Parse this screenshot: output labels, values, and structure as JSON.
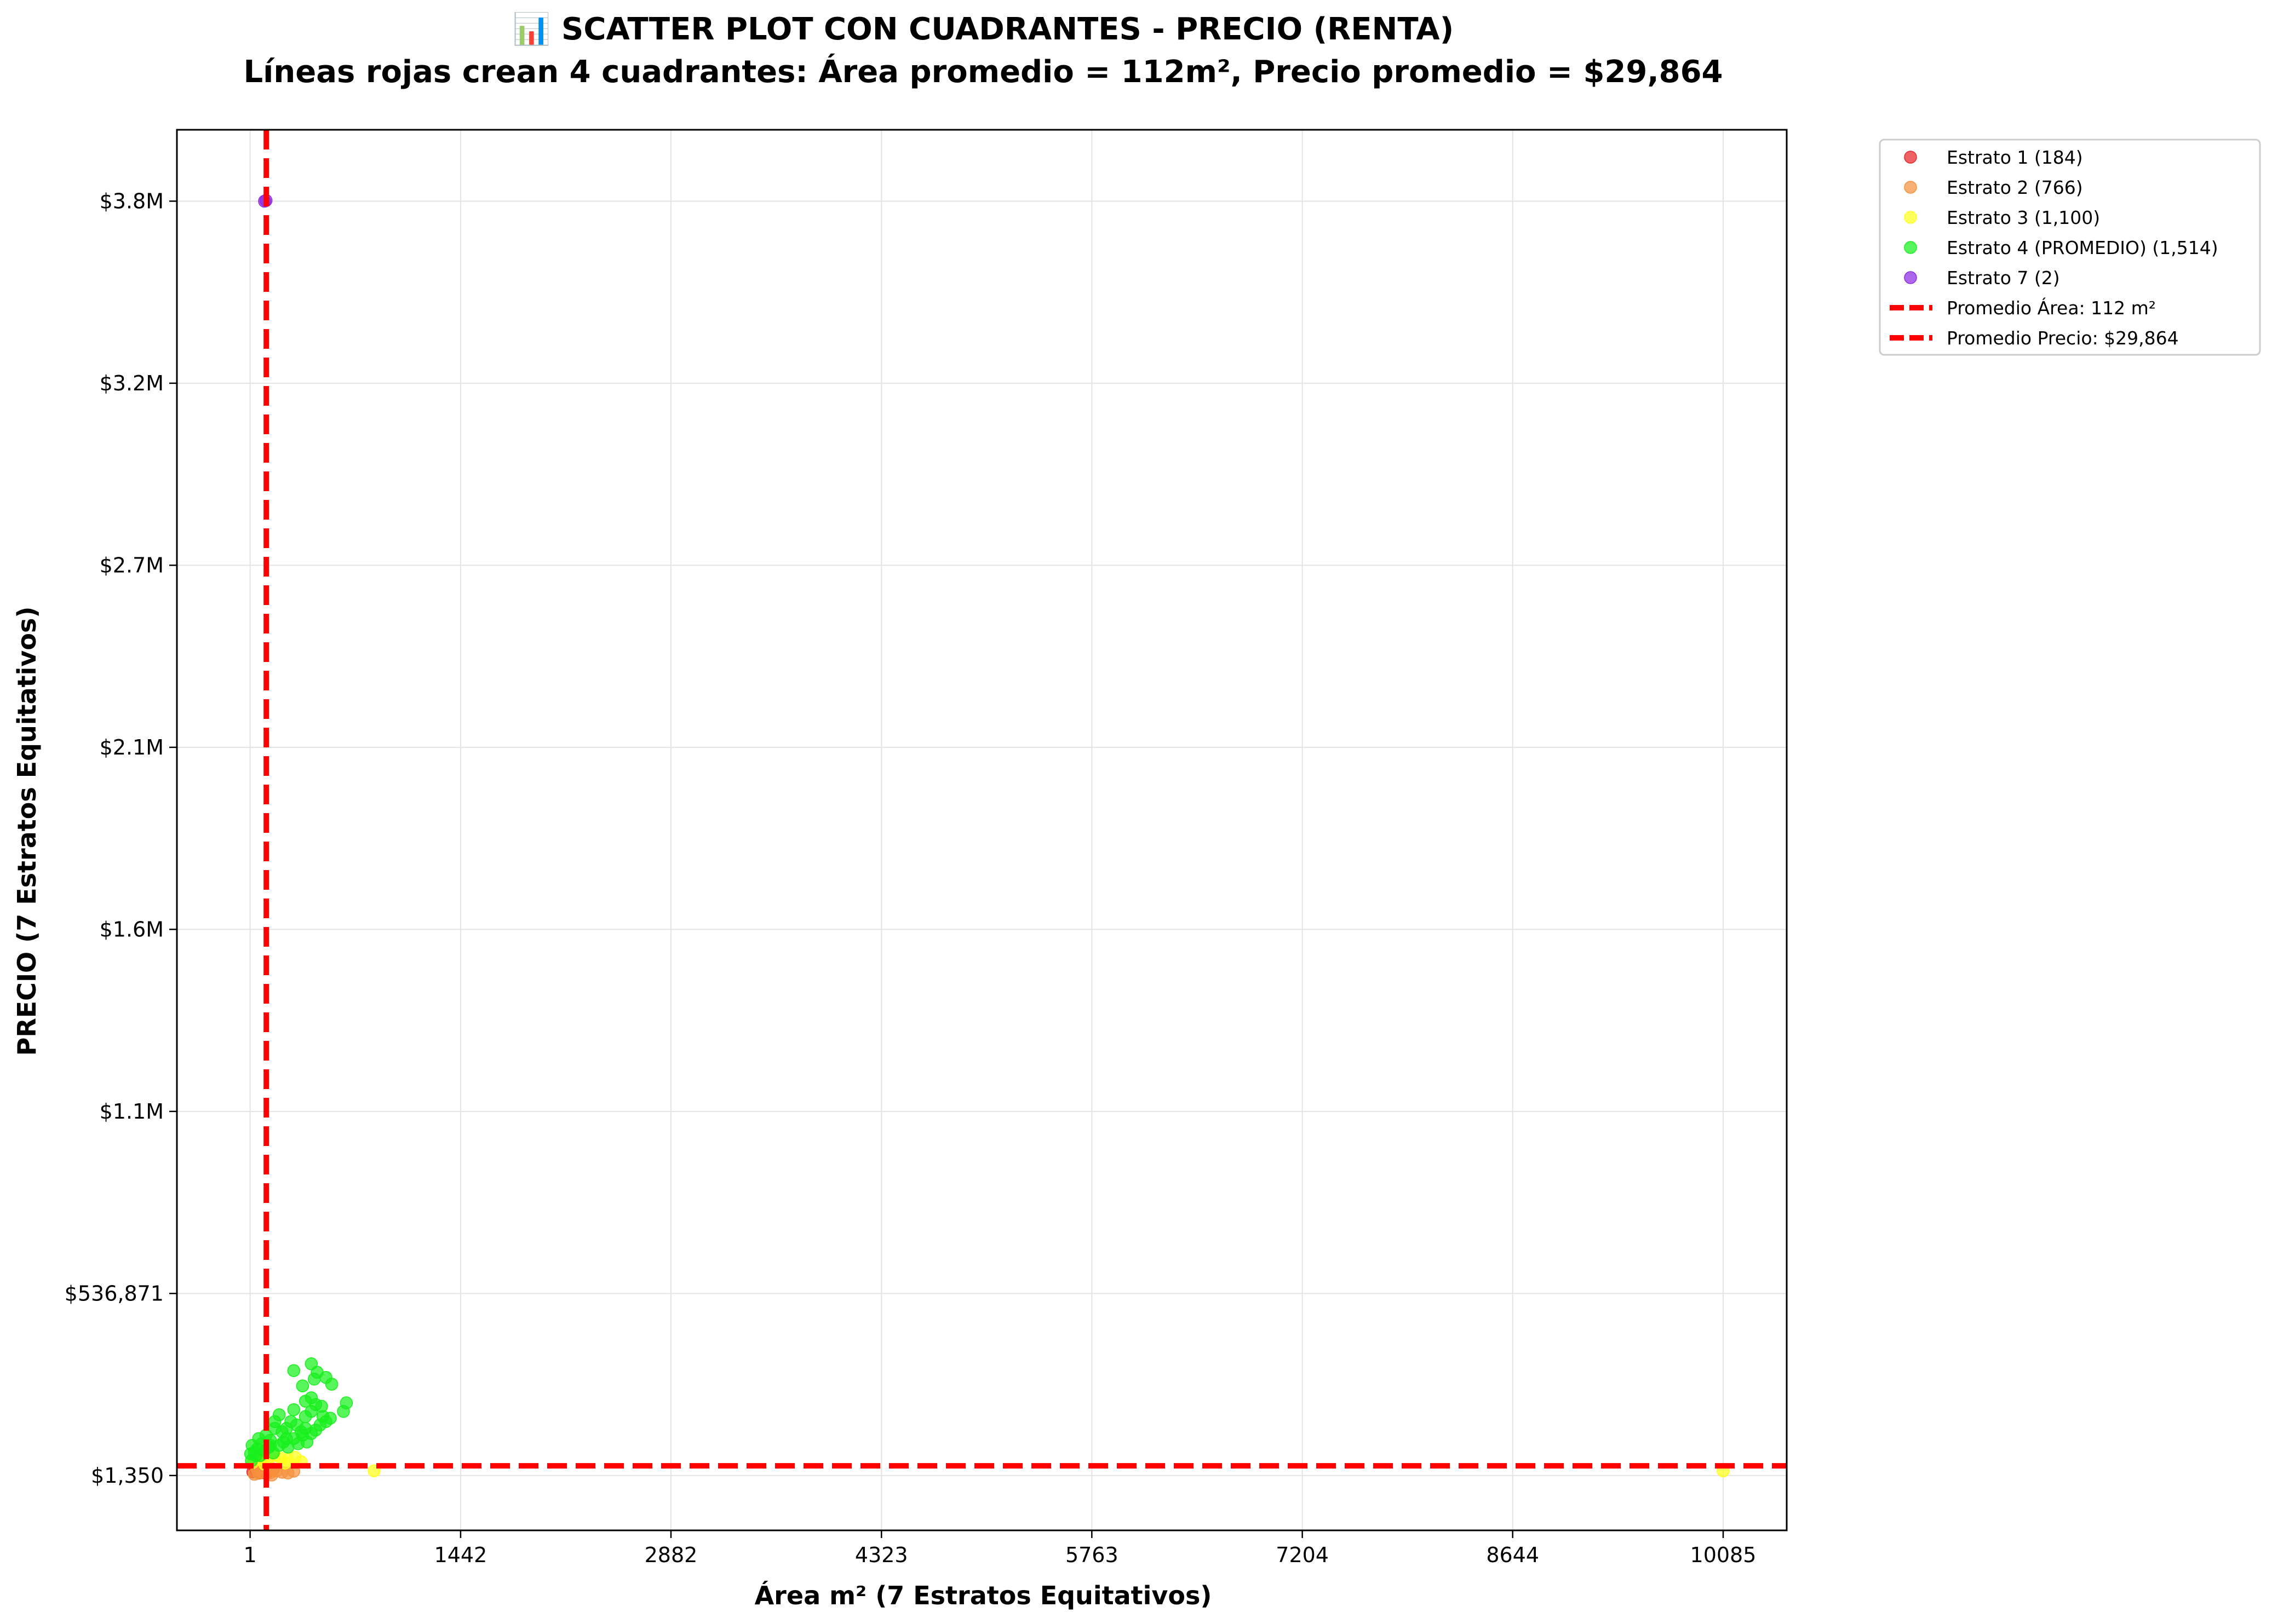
{
  "chart_data": {
    "type": "scatter",
    "title": "📊 SCATTER PLOT CON CUADRANTES - PRECIO (RENTA)",
    "subtitle": "Líneas rojas crean 4 cuadrantes: Área promedio = 112m², Precio promedio = $29,864",
    "xlabel": "Área m² (7 Estratos Equitativos)",
    "ylabel": "PRECIO (7 Estratos Equitativos)",
    "xlim": [
      -500,
      10520
    ],
    "ylim": [
      -160000,
      3960000
    ],
    "grid": true,
    "legend_position": "outside-top-right",
    "x_ticks": [
      {
        "value": 1,
        "label": "1"
      },
      {
        "value": 1442,
        "label": "1442"
      },
      {
        "value": 2882,
        "label": "2882"
      },
      {
        "value": 4323,
        "label": "4323"
      },
      {
        "value": 5763,
        "label": "5763"
      },
      {
        "value": 7204,
        "label": "7204"
      },
      {
        "value": 8644,
        "label": "8644"
      },
      {
        "value": 10085,
        "label": "10085"
      }
    ],
    "y_ticks": [
      {
        "value": 1350,
        "label": "$1,350"
      },
      {
        "value": 536871,
        "label": "$536,871"
      },
      {
        "value": 1072392,
        "label": "$1.1M"
      },
      {
        "value": 1607913,
        "label": "$1.6M"
      },
      {
        "value": 2143434,
        "label": "$2.1M"
      },
      {
        "value": 2678955,
        "label": "$2.7M"
      },
      {
        "value": 3214476,
        "label": "$3.2M"
      },
      {
        "value": 3750000,
        "label": "$3.8M"
      }
    ],
    "series": [
      {
        "name": "Estrato 1 (184)",
        "color": "#e8262a",
        "points": [
          [
            20,
            12000
          ],
          [
            45,
            15000
          ],
          [
            70,
            9000
          ],
          [
            95,
            18000
          ],
          [
            130,
            14000
          ],
          [
            160,
            20000
          ],
          [
            35,
            22000
          ],
          [
            110,
            8000
          ],
          [
            85,
            25000
          ]
        ]
      },
      {
        "name": "Estrato 2 (766)",
        "color": "#f5923e",
        "points": [
          [
            30,
            5000
          ],
          [
            60,
            8000
          ],
          [
            90,
            12000
          ],
          [
            140,
            10000
          ],
          [
            180,
            15000
          ],
          [
            220,
            11000
          ],
          [
            260,
            9000
          ],
          [
            300,
            14000
          ],
          [
            150,
            3000
          ],
          [
            50,
            18000
          ]
        ]
      },
      {
        "name": "Estrato 3 (1,100)",
        "color": "#ffff1a",
        "points": [
          [
            20,
            40000
          ],
          [
            70,
            50000
          ],
          [
            120,
            45000
          ],
          [
            170,
            60000
          ],
          [
            210,
            52000
          ],
          [
            260,
            48000
          ],
          [
            310,
            55000
          ],
          [
            350,
            42000
          ],
          [
            850,
            15000
          ],
          [
            10085,
            15000
          ],
          [
            100,
            35000
          ],
          [
            240,
            38000
          ]
        ]
      },
      {
        "name": "Estrato 4 (PROMEDIO) (1,514)",
        "color": "#17f01c",
        "points": [
          [
            5,
            65000
          ],
          [
            15,
            90000
          ],
          [
            10,
            45000
          ],
          [
            30,
            70000
          ],
          [
            50,
            80000
          ],
          [
            70,
            60000
          ],
          [
            100,
            75000
          ],
          [
            130,
            85000
          ],
          [
            160,
            68000
          ],
          [
            200,
            90000
          ],
          [
            230,
            100000
          ],
          [
            260,
            85000
          ],
          [
            300,
            110000
          ],
          [
            330,
            95000
          ],
          [
            360,
            120000
          ],
          [
            390,
            100000
          ],
          [
            250,
            140000
          ],
          [
            280,
            160000
          ],
          [
            320,
            150000
          ],
          [
            350,
            130000
          ],
          [
            380,
            140000
          ],
          [
            420,
            125000
          ],
          [
            450,
            135000
          ],
          [
            480,
            150000
          ],
          [
            500,
            175000
          ],
          [
            520,
            160000
          ],
          [
            550,
            170000
          ],
          [
            420,
            190000
          ],
          [
            450,
            210000
          ],
          [
            380,
            175000
          ],
          [
            300,
            195000
          ],
          [
            220,
            130000
          ],
          [
            170,
            140000
          ],
          [
            140,
            105000
          ],
          [
            110,
            120000
          ],
          [
            80,
            95000
          ],
          [
            60,
            110000
          ],
          [
            300,
            310000
          ],
          [
            420,
            330000
          ],
          [
            460,
            305000
          ],
          [
            520,
            290000
          ],
          [
            560,
            270000
          ],
          [
            440,
            285000
          ],
          [
            360,
            265000
          ],
          [
            380,
            220000
          ],
          [
            420,
            230000
          ],
          [
            490,
            205000
          ],
          [
            640,
            190000
          ],
          [
            660,
            215000
          ],
          [
            170,
            160000
          ],
          [
            200,
            180000
          ],
          [
            140,
            90000
          ],
          [
            40,
            60000
          ],
          [
            250,
            110000
          ]
        ]
      },
      {
        "name": "Estrato 7 (2)",
        "color": "#8c2be2",
        "points": [
          [
            100,
            3750000
          ],
          [
            110,
            3752000
          ]
        ]
      }
    ],
    "reference_lines": [
      {
        "name": "Promedio Área: 112 m²",
        "orientation": "vertical",
        "value": 112,
        "color": "#ff0000"
      },
      {
        "name": "Promedio Precio: $29,864",
        "orientation": "horizontal",
        "value": 29864,
        "color": "#ff0000"
      }
    ]
  }
}
